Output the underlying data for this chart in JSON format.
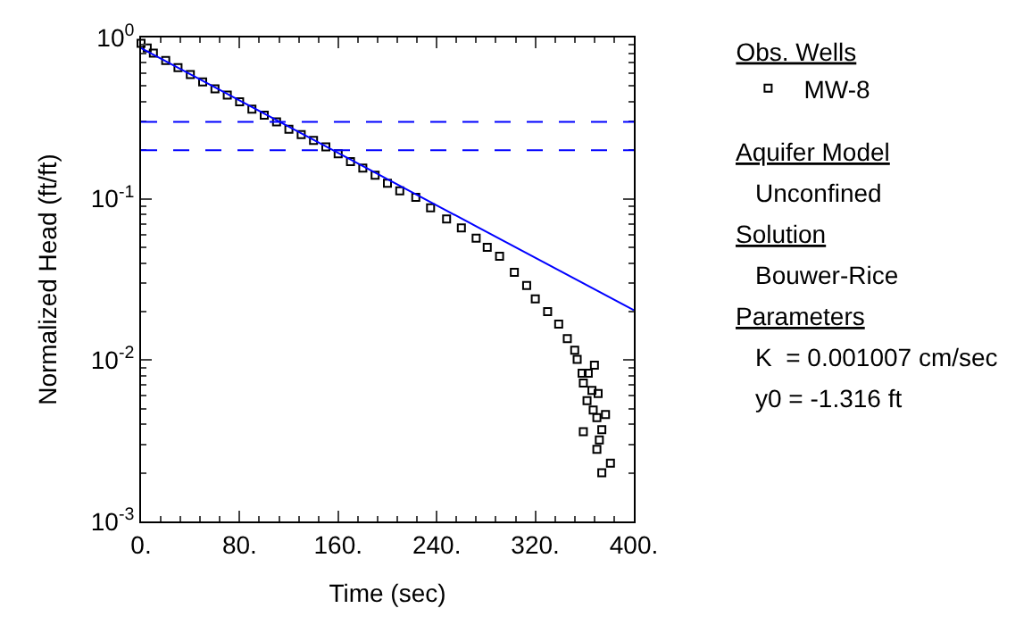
{
  "chart_data": {
    "type": "scatter",
    "xlabel": "Time (sec)",
    "ylabel": "Normalized Head (ft/ft)",
    "log": "y",
    "legend": "right",
    "legend_title": "Obs. Wells",
    "marker": "square",
    "xlim": [
      0,
      400
    ],
    "xticks": [
      {
        "value": 0,
        "label": "0."
      },
      {
        "value": 80,
        "label": "80."
      },
      {
        "value": 160,
        "label": "160."
      },
      {
        "value": 240,
        "label": "240."
      },
      {
        "value": 320,
        "label": "320."
      },
      {
        "value": 400,
        "label": "400."
      }
    ],
    "ylim": [
      0.001,
      1
    ],
    "yticks": [
      {
        "value": 0.001,
        "label": "10$^{-3}$"
      },
      {
        "value": 0.01,
        "label": "10$^{-2}$"
      },
      {
        "value": 0.1,
        "label": "10$^{-1}$"
      },
      {
        "value": 1,
        "label": "10$^{0}$"
      }
    ],
    "series": [
      {
        "name": "MW-8",
        "color": "#000000",
        "x": [
          0,
          5,
          10,
          20,
          30,
          40,
          50,
          60,
          70,
          80,
          90,
          100,
          110,
          120,
          130,
          140,
          150,
          160,
          170,
          180,
          190,
          200,
          210,
          223,
          235,
          248,
          260,
          272,
          281,
          291,
          303,
          313,
          320,
          330,
          339,
          346,
          352,
          354,
          358,
          359,
          363,
          368,
          366,
          371,
          362,
          367,
          377,
          370,
          374,
          359,
          372,
          370,
          381,
          374
        ],
        "values": [
          0.92,
          0.86,
          0.8,
          0.72,
          0.65,
          0.59,
          0.53,
          0.48,
          0.44,
          0.4,
          0.36,
          0.33,
          0.3,
          0.27,
          0.25,
          0.23,
          0.21,
          0.19,
          0.17,
          0.155,
          0.14,
          0.125,
          0.112,
          0.102,
          0.088,
          0.075,
          0.066,
          0.057,
          0.05,
          0.044,
          0.035,
          0.029,
          0.024,
          0.02,
          0.0167,
          0.0136,
          0.0115,
          0.0101,
          0.0083,
          0.0072,
          0.0083,
          0.0093,
          0.0065,
          0.0062,
          0.0056,
          0.0049,
          0.0046,
          0.0044,
          0.0037,
          0.0036,
          0.0032,
          0.0028,
          0.0023,
          0.002
        ]
      },
      {
        "type": "line",
        "marker": "none",
        "color": "#0000ff",
        "x": [
          0,
          400
        ],
        "values": [
          0.86,
          0.0204
        ]
      }
    ],
    "ref_lines": [
      {
        "axis": "y",
        "value": 0.3,
        "color": "#0000ff",
        "line_style": "dashed"
      },
      {
        "axis": "y",
        "value": 0.2,
        "color": "#0000ff",
        "line_style": "dashed"
      }
    ],
    "annotations": [
      "Aquifer Model",
      "Unconfined",
      "Solution",
      "Bouwer-Rice",
      "Parameters",
      "K  = 0.001007 cm/sec",
      "y0 = -1.316 ft"
    ]
  }
}
